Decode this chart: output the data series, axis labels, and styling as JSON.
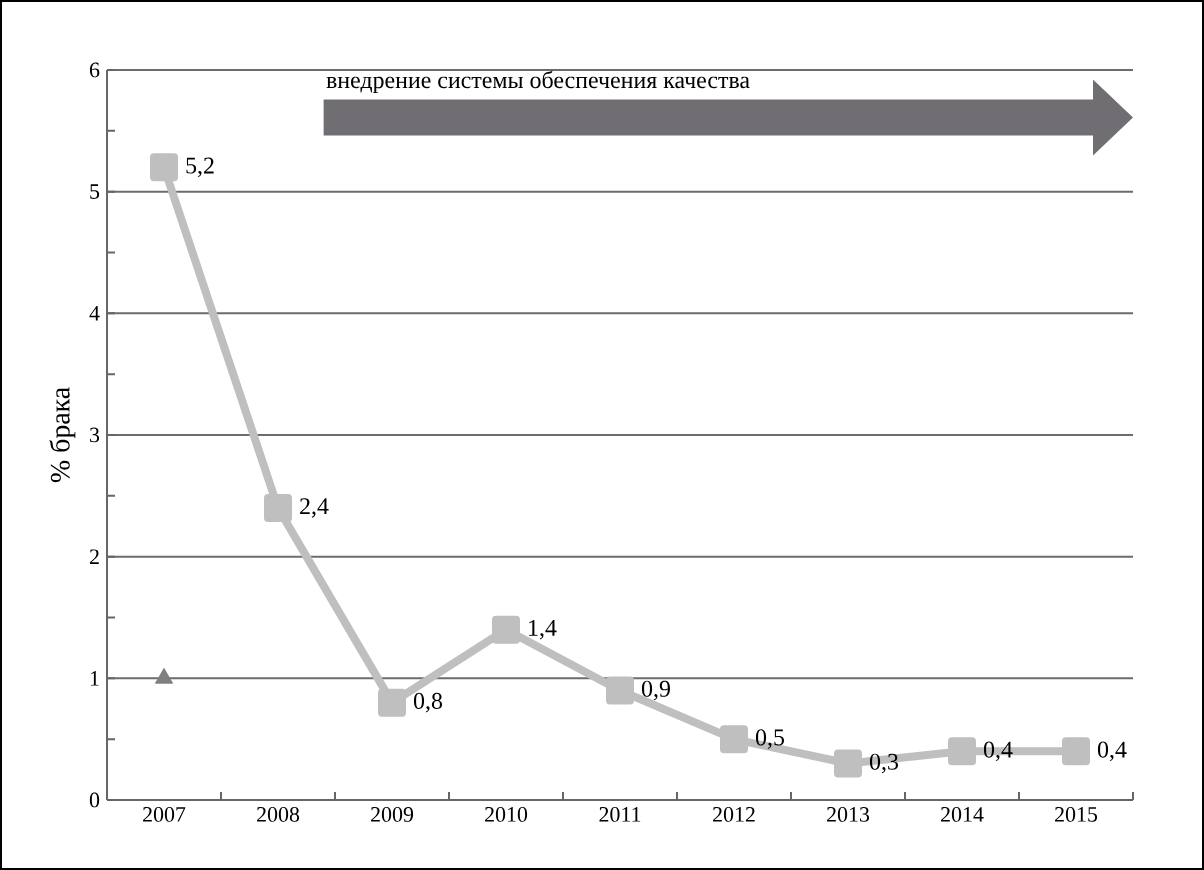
{
  "chart_data": {
    "type": "line",
    "ylabel": "% брака",
    "categories": [
      "2007",
      "2008",
      "2009",
      "2010",
      "2011",
      "2012",
      "2013",
      "2014",
      "2015"
    ],
    "series": [
      {
        "color": "#bfbfbf",
        "values": [
          5.2,
          2.4,
          0.8,
          1.4,
          0.9,
          0.5,
          0.3,
          0.4,
          0.4
        ],
        "value_labels": [
          "5,2",
          "2,4",
          "0,8",
          "1,4",
          "0,9",
          "0,5",
          "0,3",
          "0,4",
          "0,4"
        ]
      },
      {
        "type": "scatter",
        "marker": "triangle",
        "color": "#7f7f7f",
        "values": [
          1,
          null,
          null,
          null,
          null,
          null,
          null,
          null,
          null
        ]
      }
    ],
    "annotations": [
      "внедрение системы обеспечения качества"
    ],
    "ylim": [
      0,
      6
    ],
    "yticks": [
      0,
      1,
      2,
      3,
      4,
      5,
      6
    ],
    "grid": "y",
    "marker": "square",
    "line_style": "solid"
  }
}
